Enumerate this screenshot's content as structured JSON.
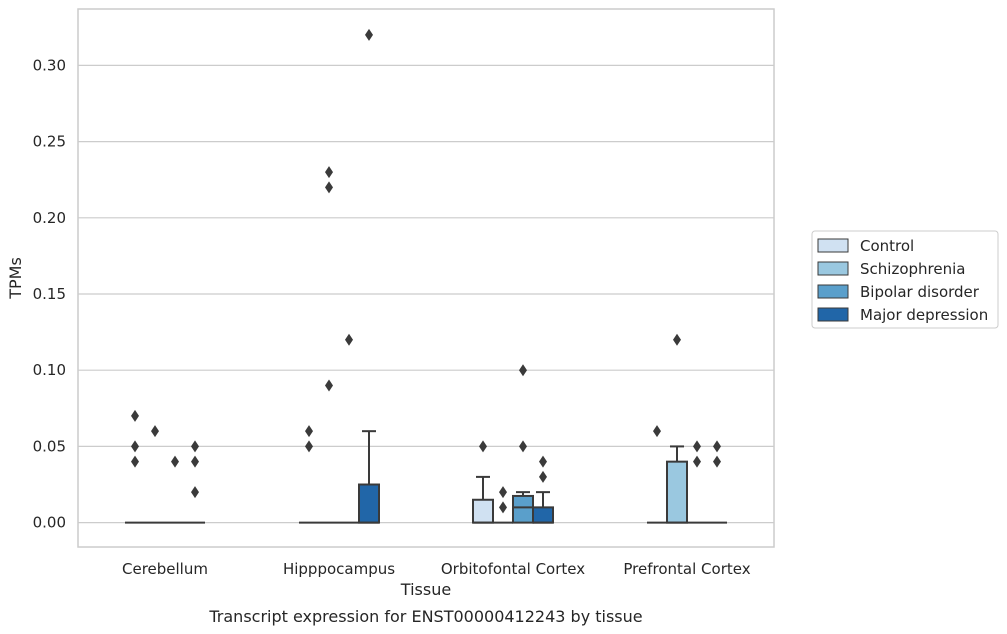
{
  "chart_data": {
    "type": "boxplot",
    "title": "",
    "caption": "Transcript expression for ENST00000412243 by tissue",
    "xlabel": "Tissue",
    "ylabel": "TPMs",
    "ylim": [
      -0.016,
      0.337
    ],
    "yticks": [
      0.0,
      0.05,
      0.1,
      0.15,
      0.2,
      0.25,
      0.3
    ],
    "ytick_labels": [
      "0.00",
      "0.05",
      "0.10",
      "0.15",
      "0.20",
      "0.25",
      "0.30"
    ],
    "grid": "horizontal",
    "legend_position": "right",
    "categories": [
      "Cerebellum",
      "Hipppocampus",
      "Orbitofontal Cortex",
      "Prefrontal Cortex"
    ],
    "series": [
      {
        "name": "Control",
        "color": "#d0e1f2",
        "boxes": [
          {
            "q1": 0,
            "median": 0,
            "q3": 0,
            "whislo": 0,
            "whishi": 0,
            "fliers": [
              0.07,
              0.05,
              0.04
            ]
          },
          {
            "q1": 0,
            "median": 0,
            "q3": 0,
            "whislo": 0,
            "whishi": 0,
            "fliers": [
              0.06,
              0.05
            ]
          },
          {
            "q1": 0,
            "median": 0,
            "q3": 0.015,
            "whislo": 0,
            "whishi": 0.03,
            "fliers": [
              0.05
            ]
          },
          {
            "q1": 0,
            "median": 0,
            "q3": 0,
            "whislo": 0,
            "whishi": 0,
            "fliers": [
              0.06
            ]
          }
        ]
      },
      {
        "name": "Schizophrenia",
        "color": "#9ac8e0",
        "boxes": [
          {
            "q1": 0,
            "median": 0,
            "q3": 0,
            "whislo": 0,
            "whishi": 0,
            "fliers": [
              0.06
            ]
          },
          {
            "q1": 0,
            "median": 0,
            "q3": 0,
            "whislo": 0,
            "whishi": 0,
            "fliers": [
              0.23,
              0.22,
              0.09
            ]
          },
          {
            "q1": 0,
            "median": 0,
            "q3": 0,
            "whislo": 0,
            "whishi": 0,
            "fliers": [
              0.02,
              0.01
            ]
          },
          {
            "q1": 0,
            "median": 0,
            "q3": 0.04,
            "whislo": 0,
            "whishi": 0.05,
            "fliers": [
              0.12
            ]
          }
        ]
      },
      {
        "name": "Bipolar disorder",
        "color": "#5a9fcb",
        "boxes": [
          {
            "q1": 0,
            "median": 0,
            "q3": 0,
            "whislo": 0,
            "whishi": 0,
            "fliers": [
              0.04
            ]
          },
          {
            "q1": 0,
            "median": 0,
            "q3": 0,
            "whislo": 0,
            "whishi": 0,
            "fliers": [
              0.12
            ]
          },
          {
            "q1": 0,
            "median": 0.01,
            "q3": 0.0175,
            "whislo": 0,
            "whishi": 0.02,
            "fliers": [
              0.1,
              0.05
            ]
          },
          {
            "q1": 0,
            "median": 0,
            "q3": 0,
            "whislo": 0,
            "whishi": 0,
            "fliers": [
              0.05,
              0.04
            ]
          }
        ]
      },
      {
        "name": "Major depression",
        "color": "#2166a8",
        "boxes": [
          {
            "q1": 0,
            "median": 0,
            "q3": 0,
            "whislo": 0,
            "whishi": 0,
            "fliers": [
              0.05,
              0.04,
              0.02
            ]
          },
          {
            "q1": 0,
            "median": 0,
            "q3": 0.025,
            "whislo": 0,
            "whishi": 0.06,
            "fliers": [
              0.32
            ]
          },
          {
            "q1": 0,
            "median": 0,
            "q3": 0.01,
            "whislo": 0,
            "whishi": 0.02,
            "fliers": [
              0.04,
              0.03
            ]
          },
          {
            "q1": 0,
            "median": 0,
            "q3": 0,
            "whislo": 0,
            "whishi": 0,
            "fliers": [
              0.05,
              0.04
            ]
          }
        ]
      }
    ]
  }
}
